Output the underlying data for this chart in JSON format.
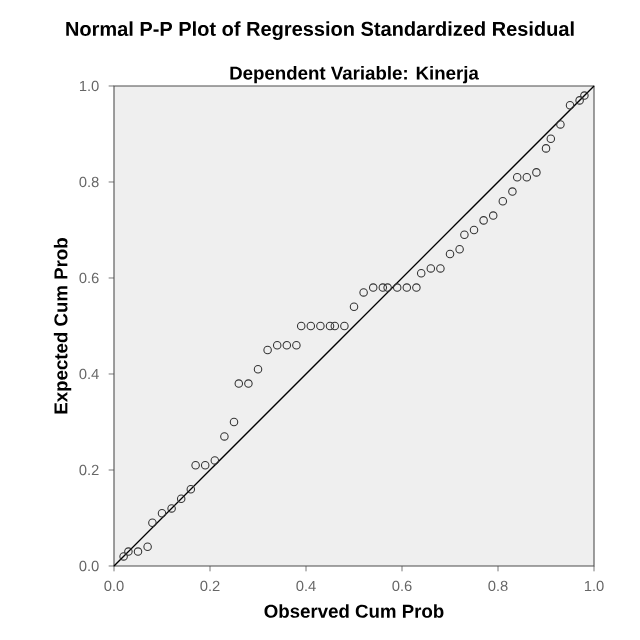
{
  "chart_data": {
    "type": "scatter",
    "title": "Normal P-P Plot of Regression Standardized Residual",
    "subtitle": "Dependent Variable: Kinerja",
    "xlabel": "Observed Cum Prob",
    "ylabel": "Expected Cum Prob",
    "xlim": [
      0,
      1
    ],
    "ylim": [
      0,
      1
    ],
    "xticks": [
      {
        "value": 0,
        "label": "0.0"
      },
      {
        "value": 0.2,
        "label": "0.2"
      },
      {
        "value": 0.4,
        "label": "0.4"
      },
      {
        "value": 0.6,
        "label": "0.6"
      },
      {
        "value": 0.8,
        "label": "0.8"
      },
      {
        "value": 1,
        "label": "1.0"
      }
    ],
    "yticks": [
      {
        "value": 0,
        "label": "0.0"
      },
      {
        "value": 0.2,
        "label": "0.2"
      },
      {
        "value": 0.4,
        "label": "0.4"
      },
      {
        "value": 0.6,
        "label": "0.6"
      },
      {
        "value": 0.8,
        "label": "0.8"
      },
      {
        "value": 1,
        "label": "1.0"
      }
    ],
    "marker": "circle",
    "series": [
      {
        "color": "#333333",
        "x": [
          0.02,
          0.03,
          0.05,
          0.07,
          0.08,
          0.1,
          0.12,
          0.14,
          0.16,
          0.17,
          0.19,
          0.21,
          0.23,
          0.25,
          0.26,
          0.28,
          0.3,
          0.32,
          0.34,
          0.36,
          0.38,
          0.39,
          0.41,
          0.43,
          0.45,
          0.46,
          0.48,
          0.5,
          0.52,
          0.54,
          0.56,
          0.57,
          0.59,
          0.61,
          0.63,
          0.64,
          0.66,
          0.68,
          0.7,
          0.72,
          0.73,
          0.75,
          0.77,
          0.79,
          0.81,
          0.83,
          0.84,
          0.86,
          0.88,
          0.9,
          0.91,
          0.93,
          0.95,
          0.97,
          0.98
        ],
        "values": [
          0.02,
          0.03,
          0.03,
          0.04,
          0.09,
          0.11,
          0.12,
          0.14,
          0.16,
          0.21,
          0.21,
          0.22,
          0.27,
          0.3,
          0.38,
          0.38,
          0.41,
          0.45,
          0.46,
          0.46,
          0.46,
          0.5,
          0.5,
          0.5,
          0.5,
          0.5,
          0.5,
          0.54,
          0.57,
          0.58,
          0.58,
          0.58,
          0.58,
          0.58,
          0.58,
          0.61,
          0.62,
          0.62,
          0.65,
          0.66,
          0.69,
          0.7,
          0.72,
          0.73,
          0.76,
          0.78,
          0.81,
          0.81,
          0.82,
          0.87,
          0.89,
          0.92,
          0.96,
          0.97,
          0.98
        ]
      },
      {
        "type": "line",
        "color": "#000000",
        "marker": "none",
        "x": [
          0,
          1
        ],
        "values": [
          0,
          1
        ]
      }
    ]
  }
}
